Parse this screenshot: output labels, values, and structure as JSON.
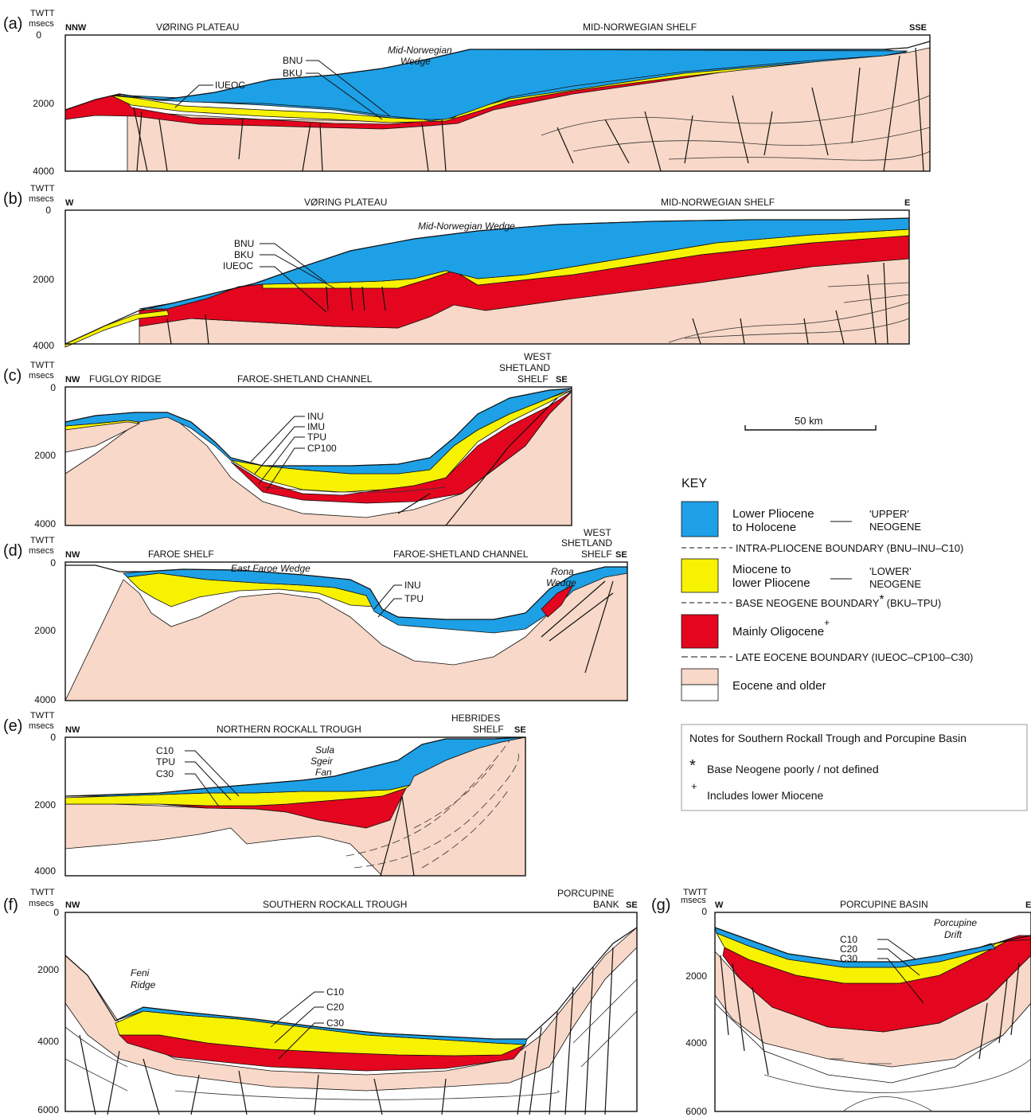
{
  "colors": {
    "upper_neogene": "#1ea0e6",
    "lower_neogene": "#f7f200",
    "oligocene": "#e3061e",
    "eocene": "#f8d8c8"
  },
  "axis_label": {
    "line1": "TWTT",
    "line2": "msecs"
  },
  "panels": [
    {
      "id": "a",
      "letter": "(a)",
      "dir_left": "NNW",
      "dir_right": "SSE",
      "regions": [
        "VØRING PLATEAU",
        "MID-NORWEGIAN SHELF"
      ],
      "ticks": [
        "0",
        "2000",
        "4000"
      ],
      "horizons": [
        "BNU",
        "BKU",
        "IUEOC"
      ],
      "features": [
        "Mid-Norwegian",
        "Wedge"
      ]
    },
    {
      "id": "b",
      "letter": "(b)",
      "dir_left": "W",
      "dir_right": "E",
      "regions": [
        "VØRING PLATEAU",
        "MID-NORWEGIAN SHELF"
      ],
      "ticks": [
        "0",
        "2000",
        "4000"
      ],
      "horizons": [
        "BNU",
        "BKU",
        "IUEOC"
      ],
      "features": [
        "Mid-Norwegian Wedge"
      ]
    },
    {
      "id": "c",
      "letter": "(c)",
      "dir_left": "NW",
      "dir_right": "SE",
      "regions": [
        "FUGLOY RIDGE",
        "FAROE-SHETLAND CHANNEL",
        "WEST",
        "SHETLAND",
        "SHELF"
      ],
      "ticks": [
        "0",
        "2000",
        "4000"
      ],
      "horizons": [
        "INU",
        "IMU",
        "TPU",
        "CP100"
      ]
    },
    {
      "id": "d",
      "letter": "(d)",
      "dir_left": "NW",
      "dir_right": "SE",
      "regions": [
        "FAROE SHELF",
        "FAROE-SHETLAND CHANNEL",
        "WEST",
        "SHETLAND",
        "SHELF"
      ],
      "ticks": [
        "0",
        "2000",
        "4000"
      ],
      "horizons": [
        "INU",
        "TPU"
      ],
      "features": [
        "East Faroe Wedge",
        "Rona",
        "Wedge"
      ]
    },
    {
      "id": "e",
      "letter": "(e)",
      "dir_left": "NW",
      "dir_right": "SE",
      "regions": [
        "NORTHERN ROCKALL TROUGH",
        "HEBRIDES",
        "SHELF"
      ],
      "ticks": [
        "0",
        "2000",
        "4000"
      ],
      "horizons": [
        "C10",
        "TPU",
        "C30"
      ],
      "features": [
        "Sula",
        "Sgeir",
        "Fan"
      ]
    },
    {
      "id": "f",
      "letter": "(f)",
      "dir_left": "NW",
      "dir_right": "SE",
      "regions": [
        "SOUTHERN ROCKALL TROUGH",
        "PORCUPINE",
        "BANK"
      ],
      "ticks": [
        "0",
        "2000",
        "4000",
        "6000"
      ],
      "horizons": [
        "C10",
        "C20",
        "C30"
      ],
      "features": [
        "Feni",
        "Ridge"
      ]
    },
    {
      "id": "g",
      "letter": "(g)",
      "dir_left": "W",
      "dir_right": "E",
      "regions": [
        "PORCUPINE BASIN"
      ],
      "ticks": [
        "0",
        "2000",
        "4000",
        "6000"
      ],
      "horizons": [
        "C10",
        "C20",
        "C30"
      ],
      "features": [
        "Porcupine",
        "Drift"
      ]
    }
  ],
  "scale_bar": "50 km",
  "key": {
    "title": "KEY",
    "items": [
      {
        "name": "Lower Pliocene",
        "name2": "to Holocene",
        "group": "'UPPER'",
        "group2": "NEOGENE"
      },
      {
        "boundary": "INTRA-PLIOCENE BOUNDARY (BNU–INU–C10)"
      },
      {
        "name": "Miocene to",
        "name2": "lower Pliocene",
        "group": "'LOWER'",
        "group2": "NEOGENE"
      },
      {
        "boundary": "BASE NEOGENE BOUNDARY",
        "boundary_mark": "*",
        "boundary_tail": "(BKU–TPU)"
      },
      {
        "name": "Mainly Oligocene",
        "mark": "+"
      },
      {
        "boundary": "LATE EOCENE BOUNDARY (IUEOC–CP100–C30)"
      },
      {
        "name": "Eocene and older"
      }
    ]
  },
  "notes": {
    "title": "Notes for Southern Rockall Trough and Porcupine Basin",
    "line1_mark": "*",
    "line1": "Base Neogene poorly / not defined",
    "line2_mark": "+",
    "line2": "Includes lower Miocene"
  }
}
